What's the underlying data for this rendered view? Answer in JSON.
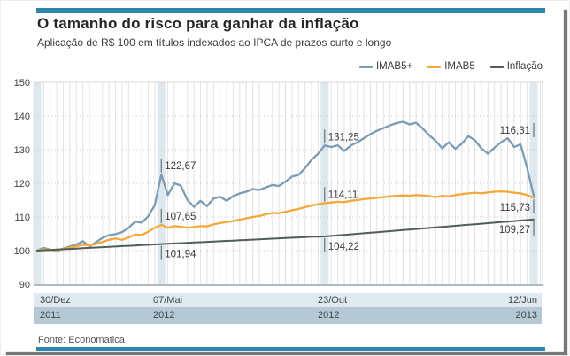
{
  "header": {
    "title": "O tamanho do risco para ganhar da inflação",
    "subtitle": "Aplicação de R$ 100 em títulos indexados ao IPCA de prazos curto e longo"
  },
  "source": "Fonte: Economatica",
  "colors": {
    "accent_bar": "#2e86ae",
    "imab5plus": "#7b9cb3",
    "imab5": "#f2a93b",
    "inflacao": "#515e55",
    "grid": "#e3e3e3",
    "axis_line": "#98a2a8",
    "highlight_band": "#cfdfe8",
    "xrow_date_bg": "#dfe9ee",
    "xrow_year_bg": "#b4c9d3"
  },
  "chart_data": {
    "type": "line",
    "title": "O tamanho do risco para ganhar da inflação",
    "subtitle": "Aplicação de R$ 100 em títulos indexados ao IPCA de prazos curto e longo",
    "ylim": [
      90,
      150
    ],
    "yticks": [
      150,
      140,
      130,
      120,
      110,
      100,
      90
    ],
    "grid": "weekly-vertical, dotted-horizontal",
    "legend_position": "top-right",
    "x_unit": "weeks from 30/Dez/2011 to 12/Jun/2013",
    "x_axis": {
      "ticks": [
        {
          "week": 0,
          "date": "30/Dez",
          "year": "2011"
        },
        {
          "week": 19,
          "date": "07/Mai",
          "year": "2012"
        },
        {
          "week": 44,
          "date": "23/Out",
          "year": "2012"
        },
        {
          "week": 76,
          "date": "12/Jun",
          "year": "2013"
        }
      ]
    },
    "highlight_weeks": [
      0,
      19,
      44,
      76
    ],
    "series": [
      {
        "name": "IMAB5+",
        "color": "#7b9cb3",
        "width": 2.3,
        "values": [
          100.0,
          100.8,
          100.3,
          99.8,
          100.6,
          101.2,
          101.8,
          102.8,
          101.2,
          102.5,
          103.8,
          104.6,
          104.9,
          105.5,
          106.8,
          108.6,
          108.3,
          110.2,
          113.5,
          122.67,
          116.5,
          120.0,
          119.3,
          115.0,
          113.0,
          114.8,
          113.2,
          115.5,
          116.0,
          114.8,
          116.2,
          117.0,
          117.5,
          118.3,
          118.0,
          118.8,
          119.5,
          119.2,
          120.5,
          122.0,
          122.5,
          124.5,
          127.0,
          128.8,
          131.25,
          130.8,
          131.3,
          129.6,
          131.2,
          132.2,
          133.4,
          134.6,
          135.6,
          136.4,
          137.2,
          137.9,
          138.3,
          137.5,
          138.0,
          136.3,
          134.3,
          132.6,
          130.4,
          132.2,
          130.2,
          131.8,
          134.0,
          132.8,
          130.4,
          128.8,
          130.6,
          132.2,
          133.4,
          130.8,
          131.6,
          124.5,
          116.31
        ]
      },
      {
        "name": "IMAB5",
        "color": "#f2a93b",
        "width": 2.3,
        "values": [
          100.0,
          100.4,
          100.2,
          100.1,
          100.5,
          100.9,
          101.3,
          101.8,
          101.5,
          102.0,
          102.6,
          103.2,
          103.6,
          103.2,
          103.9,
          104.8,
          104.6,
          105.6,
          106.8,
          107.65,
          106.8,
          107.3,
          107.1,
          106.8,
          107.0,
          107.3,
          107.2,
          107.8,
          108.2,
          108.5,
          108.8,
          109.2,
          109.6,
          110.0,
          110.3,
          110.8,
          111.2,
          111.1,
          111.5,
          112.0,
          112.4,
          112.9,
          113.4,
          113.8,
          114.11,
          114.3,
          114.5,
          114.4,
          114.8,
          115.0,
          115.3,
          115.5,
          115.7,
          115.9,
          116.1,
          116.3,
          116.4,
          116.3,
          116.5,
          116.4,
          116.2,
          115.9,
          116.3,
          116.1,
          116.5,
          116.8,
          117.0,
          117.2,
          117.0,
          117.3,
          117.5,
          117.6,
          117.5,
          117.2,
          117.0,
          116.5,
          115.73
        ]
      },
      {
        "name": "Inflação",
        "color": "#515e55",
        "width": 2,
        "values": [
          100.0,
          100.1,
          100.2,
          100.31,
          100.41,
          100.51,
          100.61,
          100.71,
          100.82,
          100.92,
          101.02,
          101.12,
          101.22,
          101.33,
          101.43,
          101.53,
          101.63,
          101.73,
          101.84,
          101.94,
          102.03,
          102.13,
          102.22,
          102.32,
          102.41,
          102.51,
          102.6,
          102.7,
          102.79,
          102.89,
          102.98,
          103.08,
          103.17,
          103.27,
          103.36,
          103.46,
          103.55,
          103.65,
          103.74,
          103.84,
          103.93,
          104.03,
          104.12,
          104.17,
          104.22,
          104.38,
          104.54,
          104.69,
          104.85,
          105.01,
          105.17,
          105.32,
          105.48,
          105.64,
          105.8,
          105.95,
          106.11,
          106.27,
          106.43,
          106.58,
          106.74,
          106.9,
          107.06,
          107.21,
          107.37,
          107.53,
          107.69,
          107.84,
          108.0,
          108.16,
          108.32,
          108.47,
          108.63,
          108.79,
          108.95,
          109.1,
          109.27
        ]
      }
    ],
    "annotations": [
      {
        "week": 19,
        "items": [
          {
            "series": "IMAB5+",
            "text": "122,67",
            "value": 122.67,
            "pos": "above"
          },
          {
            "series": "IMAB5",
            "text": "107,65",
            "value": 107.65,
            "pos": "above"
          },
          {
            "series": "Inflação",
            "text": "101,94",
            "value": 101.94,
            "pos": "below"
          }
        ]
      },
      {
        "week": 44,
        "items": [
          {
            "series": "IMAB5+",
            "text": "131,25",
            "value": 131.25,
            "pos": "above"
          },
          {
            "series": "IMAB5",
            "text": "114,11",
            "value": 114.11,
            "pos": "above"
          },
          {
            "series": "Inflação",
            "text": "104,22",
            "value": 104.22,
            "pos": "below"
          }
        ]
      },
      {
        "week": 76,
        "items": [
          {
            "series": "IMAB5+",
            "text": "116,31",
            "value": 116.31,
            "pos": "above",
            "anchor": 133.2
          },
          {
            "series": "IMAB5",
            "text": "115,73",
            "value": 115.73,
            "pos": "below"
          },
          {
            "series": "Inflação",
            "text": "109,27",
            "value": 109.27,
            "pos": "below"
          }
        ]
      }
    ]
  }
}
